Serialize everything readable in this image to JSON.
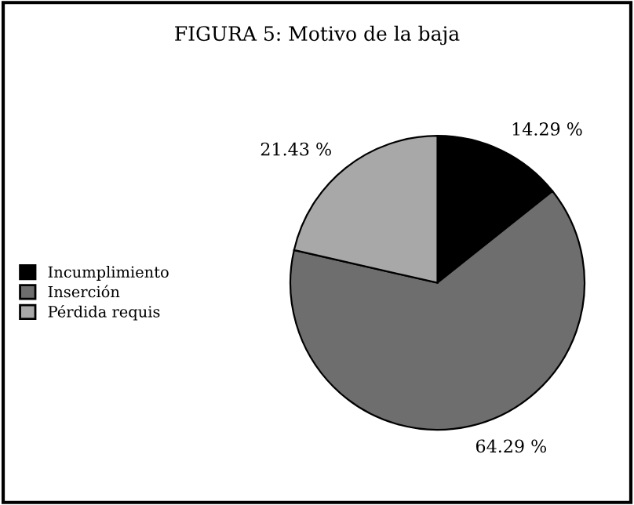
{
  "chart_data": {
    "type": "pie",
    "title": "FIGURA 5: Motivo de la baja",
    "categories": [
      "Incumplimiento",
      "Inserción",
      "Pérdida requis"
    ],
    "values": [
      14.29,
      64.29,
      21.43
    ],
    "value_labels": [
      "14.29 %",
      "64.29 %",
      "21.43 %"
    ],
    "colors": [
      "#000000",
      "#6e6e6e",
      "#a8a8a8"
    ],
    "legend": "left"
  }
}
